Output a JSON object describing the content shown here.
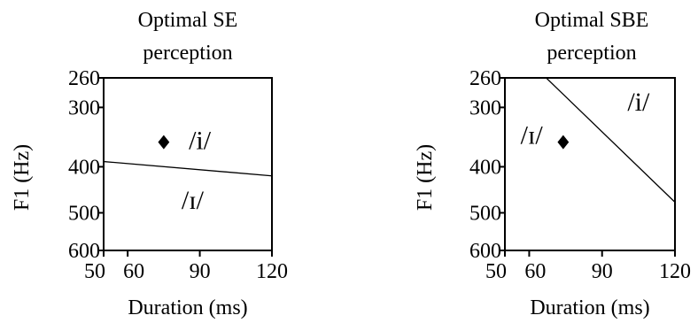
{
  "chart_data": [
    {
      "type": "scatter",
      "title_lines": [
        "Optimal SE",
        "perception"
      ],
      "xlabel": "Duration (ms)",
      "ylabel": "F1 (Hz)",
      "xlim": [
        50,
        120
      ],
      "ylim": [
        600,
        260
      ],
      "y_scale": "log",
      "xticks": [
        50,
        60,
        90,
        120
      ],
      "xtick_labels": [
        "50",
        "60",
        "90",
        "120"
      ],
      "yticks": [
        260,
        300,
        400,
        500,
        600
      ],
      "ytick_labels": [
        "260",
        "300",
        "400",
        "500",
        "600"
      ],
      "boundary": [
        {
          "x": 50,
          "y": 390
        },
        {
          "x": 120,
          "y": 418
        }
      ],
      "point": {
        "x": 75,
        "y": 355
      },
      "region_labels": [
        {
          "text": "/i/",
          "x": 90,
          "y": 352
        },
        {
          "text": "/ɪ/",
          "x": 87,
          "y": 470
        }
      ]
    },
    {
      "type": "scatter",
      "title_lines": [
        "Optimal SBE",
        "perception"
      ],
      "xlabel": "Duration (ms)",
      "ylabel": "F1 (Hz)",
      "xlim": [
        50,
        120
      ],
      "ylim": [
        600,
        260
      ],
      "y_scale": "log",
      "xticks": [
        50,
        60,
        90,
        120
      ],
      "xtick_labels": [
        "50",
        "60",
        "90",
        "120"
      ],
      "yticks": [
        260,
        300,
        400,
        500,
        600
      ],
      "ytick_labels": [
        "260",
        "300",
        "400",
        "500",
        "600"
      ],
      "boundary": [
        {
          "x": 67,
          "y": 260
        },
        {
          "x": 120,
          "y": 475
        }
      ],
      "point": {
        "x": 74,
        "y": 355
      },
      "region_labels": [
        {
          "text": "/i/",
          "x": 105,
          "y": 292
        },
        {
          "text": "/ɪ/",
          "x": 61,
          "y": 343
        }
      ]
    }
  ]
}
